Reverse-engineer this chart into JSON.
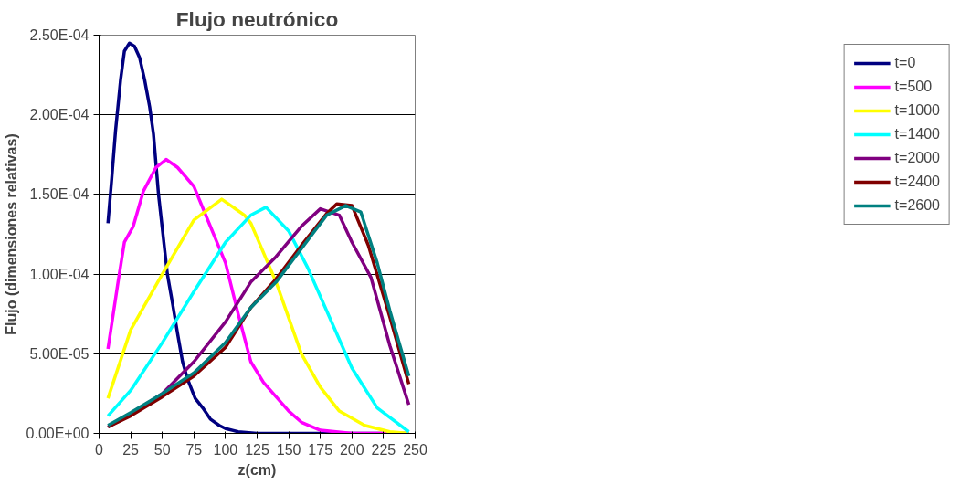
{
  "chart_data": {
    "type": "line",
    "title": "Flujo neutrónico",
    "xlabel": "z(cm)",
    "ylabel": "Flujo (dimensiones relativas)",
    "xlim": [
      0,
      250
    ],
    "xticks": [
      0,
      25,
      50,
      75,
      100,
      125,
      150,
      175,
      200,
      225,
      250
    ],
    "ylim": [
      0,
      0.00025
    ],
    "yticks": [
      {
        "value": 0,
        "label": "0.00E+00"
      },
      {
        "value": 5e-05,
        "label": "5.00E-05"
      },
      {
        "value": 0.0001,
        "label": "1.00E-04"
      },
      {
        "value": 0.00015,
        "label": "1.50E-04"
      },
      {
        "value": 0.0002,
        "label": "2.00E-04"
      },
      {
        "value": 0.00025,
        "label": "2.50E-04"
      }
    ],
    "grid": "y",
    "legend": "right",
    "marker": "none",
    "line_style": "solid",
    "series": [
      {
        "name": "t=0",
        "color": "#000080",
        "x": [
          7,
          10,
          13,
          17,
          20,
          24,
          28,
          32,
          36,
          40,
          43,
          47,
          54,
          58,
          62,
          66,
          70,
          76,
          82,
          88,
          95,
          100,
          110,
          125,
          150,
          200,
          245
        ],
        "values": [
          0.000132,
          0.00016,
          0.00019,
          0.000222,
          0.00024,
          0.000245,
          0.000243,
          0.000236,
          0.000222,
          0.000205,
          0.000188,
          0.00015,
          0.0001,
          8.2e-05,
          6.3e-05,
          4.5e-05,
          3.4e-05,
          2.2e-05,
          1.6e-05,
          9e-06,
          5e-06,
          3e-06,
          1e-06,
          0,
          0,
          0,
          0
        ]
      },
      {
        "name": "t=500",
        "color": "#ff00ff",
        "x": [
          7,
          15,
          20,
          27,
          35,
          45,
          53,
          62,
          75,
          88,
          100,
          110,
          120,
          130,
          140,
          150,
          160,
          175,
          200,
          245
        ],
        "values": [
          5.3e-05,
          9.5e-05,
          0.00012,
          0.00013,
          0.000152,
          0.000167,
          0.000172,
          0.000167,
          0.000155,
          0.00013,
          0.000107,
          7.5e-05,
          4.5e-05,
          3.2e-05,
          2.3e-05,
          1.4e-05,
          7e-06,
          2e-06,
          0,
          0
        ]
      },
      {
        "name": "t=1000",
        "color": "#ffff00",
        "x": [
          7,
          25,
          50,
          75,
          97,
          115,
          120,
          140,
          160,
          175,
          190,
          210,
          230,
          245
        ],
        "values": [
          2.2e-05,
          6.5e-05,
          0.0001,
          0.000134,
          0.000147,
          0.000137,
          0.000132,
          9.5e-05,
          5e-05,
          2.9e-05,
          1.4e-05,
          5e-06,
          1e-06,
          0
        ]
      },
      {
        "name": "t=1400",
        "color": "#00ffff",
        "x": [
          7,
          25,
          50,
          75,
          100,
          120,
          132,
          150,
          165,
          180,
          200,
          220,
          245
        ],
        "values": [
          1.1e-05,
          2.7e-05,
          5.7e-05,
          8.9e-05,
          0.00012,
          0.000137,
          0.000142,
          0.000127,
          0.000104,
          7.7e-05,
          4.1e-05,
          1.6e-05,
          1e-06
        ]
      },
      {
        "name": "t=2000",
        "color": "#800080",
        "x": [
          7,
          25,
          50,
          75,
          100,
          120,
          140,
          160,
          175,
          190,
          200,
          215,
          230,
          245
        ],
        "values": [
          4e-06,
          1.2e-05,
          2.5e-05,
          4.5e-05,
          7e-05,
          9.5e-05,
          0.000111,
          0.00013,
          0.000141,
          0.000137,
          0.00012,
          9.8e-05,
          5.5e-05,
          1.8e-05
        ]
      },
      {
        "name": "t=2400",
        "color": "#800000",
        "x": [
          7,
          25,
          50,
          75,
          100,
          120,
          140,
          160,
          180,
          188,
          200,
          213,
          230,
          245
        ],
        "values": [
          4e-06,
          1.1e-05,
          2.3e-05,
          3.6e-05,
          5.4e-05,
          7.9e-05,
          9.7e-05,
          0.000118,
          0.000138,
          0.000144,
          0.000143,
          0.000118,
          7.3e-05,
          3.1e-05
        ]
      },
      {
        "name": "t=2600",
        "color": "#008080",
        "x": [
          7,
          25,
          50,
          75,
          100,
          120,
          140,
          160,
          180,
          195,
          207,
          220,
          230,
          245
        ],
        "values": [
          5e-06,
          1.3e-05,
          2.5e-05,
          3.8e-05,
          5.7e-05,
          7.9e-05,
          9.5e-05,
          0.000116,
          0.000137,
          0.000143,
          0.000139,
          0.000107,
          7.7e-05,
          3.6e-05
        ]
      }
    ]
  }
}
